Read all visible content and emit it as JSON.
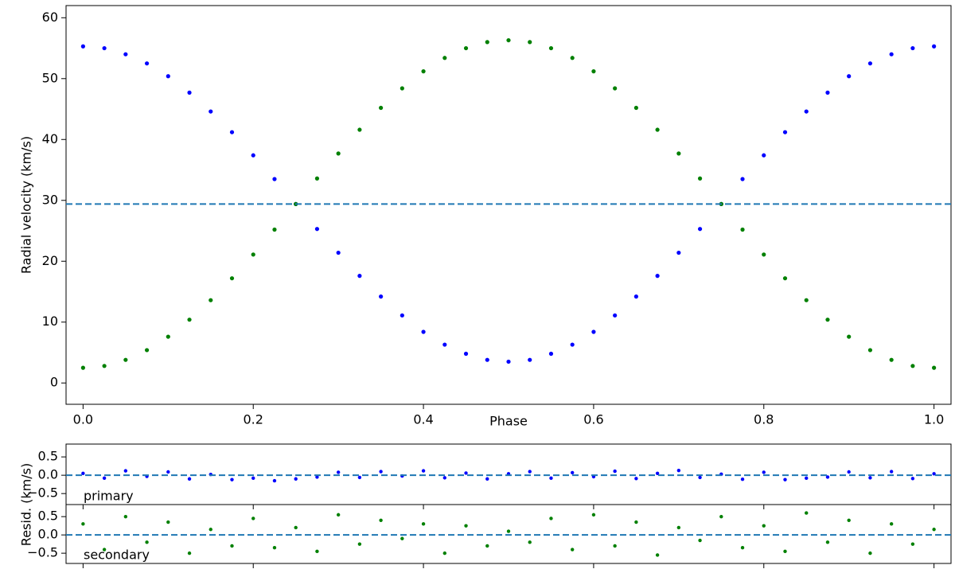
{
  "chart_data": [
    {
      "type": "scatter",
      "xlabel": "Phase",
      "ylabel": "Radial velocity (km/s)",
      "xlim": [
        -0.02,
        1.02
      ],
      "ylim": [
        -3.5,
        62
      ],
      "xticks": [
        {
          "value": 0,
          "label": "0.0"
        },
        0.2,
        0.4,
        0.6,
        0.8,
        {
          "value": 1,
          "label": "1.0"
        }
      ],
      "yticks": [
        0,
        10,
        20,
        30,
        40,
        50,
        60
      ],
      "hline": 29.4,
      "hline_color": "#1f77b4",
      "series": [
        {
          "color": "#0000ff",
          "x": [
            0,
            0.025,
            0.05,
            0.075,
            0.1,
            0.125,
            0.15,
            0.175,
            0.2,
            0.225,
            0.25,
            0.275,
            0.3,
            0.325,
            0.35,
            0.375,
            0.4,
            0.425,
            0.45,
            0.475,
            0.5,
            0.525,
            0.55,
            0.575,
            0.6,
            0.625,
            0.65,
            0.675,
            0.7,
            0.725,
            0.75,
            0.775,
            0.8,
            0.825,
            0.85,
            0.875,
            0.9,
            0.925,
            0.95,
            0.975,
            1
          ],
          "values": [
            55.3,
            55.0,
            54.0,
            52.5,
            50.4,
            47.7,
            44.6,
            41.2,
            37.4,
            33.5,
            29.4,
            25.3,
            21.4,
            17.6,
            14.2,
            11.1,
            8.4,
            6.3,
            4.8,
            3.8,
            3.5,
            3.8,
            4.8,
            6.3,
            8.4,
            11.1,
            14.2,
            17.6,
            21.4,
            25.3,
            29.4,
            33.5,
            37.4,
            41.2,
            44.6,
            47.7,
            50.4,
            52.5,
            54.0,
            55.0,
            55.3
          ]
        },
        {
          "color": "#008000",
          "x": [
            0,
            0.025,
            0.05,
            0.075,
            0.1,
            0.125,
            0.15,
            0.175,
            0.2,
            0.225,
            0.25,
            0.275,
            0.3,
            0.325,
            0.35,
            0.375,
            0.4,
            0.425,
            0.45,
            0.475,
            0.5,
            0.525,
            0.55,
            0.575,
            0.6,
            0.625,
            0.65,
            0.675,
            0.7,
            0.725,
            0.75,
            0.775,
            0.8,
            0.825,
            0.85,
            0.875,
            0.9,
            0.925,
            0.95,
            0.975,
            1
          ],
          "values": [
            2.5,
            2.8,
            3.8,
            5.4,
            7.6,
            10.4,
            13.6,
            17.2,
            21.1,
            25.2,
            29.4,
            33.6,
            37.7,
            41.6,
            45.2,
            48.4,
            51.2,
            53.4,
            55.0,
            56.0,
            56.3,
            56.0,
            55.0,
            53.4,
            51.2,
            48.4,
            45.2,
            41.6,
            37.7,
            33.6,
            29.4,
            25.2,
            21.1,
            17.2,
            13.6,
            10.4,
            7.6,
            5.4,
            3.8,
            2.8,
            2.5
          ]
        }
      ]
    },
    {
      "type": "scatter",
      "annotation": "primary",
      "ylabel": "Resid.  (km/s)",
      "xlim": [
        -0.02,
        1.02
      ],
      "ylim": [
        -0.8,
        0.85
      ],
      "xticks": [
        0,
        0.2,
        0.4,
        0.6,
        0.8,
        1
      ],
      "yticks": [
        {
          "value": -0.5,
          "label": "−0.5"
        },
        {
          "value": 0,
          "label": "0.0"
        },
        0.5
      ],
      "hline": 0,
      "hline_color": "#1f77b4",
      "series": [
        {
          "color": "#0000ff",
          "x": [
            0,
            0.025,
            0.05,
            0.075,
            0.1,
            0.125,
            0.15,
            0.175,
            0.2,
            0.225,
            0.25,
            0.275,
            0.3,
            0.325,
            0.35,
            0.375,
            0.4,
            0.425,
            0.45,
            0.475,
            0.5,
            0.525,
            0.55,
            0.575,
            0.6,
            0.625,
            0.65,
            0.675,
            0.7,
            0.725,
            0.75,
            0.775,
            0.8,
            0.825,
            0.85,
            0.875,
            0.9,
            0.925,
            0.95,
            0.975,
            1
          ],
          "values": [
            0.05,
            -0.08,
            0.12,
            -0.03,
            0.09,
            -0.1,
            0.02,
            -0.12,
            -0.08,
            -0.15,
            -0.1,
            -0.05,
            0.08,
            -0.06,
            0.1,
            -0.02,
            0.12,
            -0.07,
            0.06,
            -0.1,
            0.04,
            0.1,
            -0.08,
            0.07,
            -0.04,
            0.11,
            -0.09,
            0.05,
            0.13,
            -0.06,
            0.03,
            -0.11,
            0.08,
            -0.12,
            -0.08,
            -0.05,
            0.09,
            -0.07,
            0.1,
            -0.09,
            0.04
          ]
        }
      ]
    },
    {
      "type": "scatter",
      "annotation": "secondary",
      "xlim": [
        -0.02,
        1.02
      ],
      "ylim": [
        -0.78,
        0.83
      ],
      "xticks": [
        0,
        0.2,
        0.4,
        0.6,
        0.8,
        1
      ],
      "yticks": [
        {
          "value": -0.5,
          "label": "−0.5"
        },
        {
          "value": 0,
          "label": "0.0"
        },
        0.5
      ],
      "hline": 0,
      "hline_color": "#1f77b4",
      "series": [
        {
          "color": "#008000",
          "x": [
            0,
            0.025,
            0.05,
            0.075,
            0.1,
            0.125,
            0.15,
            0.175,
            0.2,
            0.225,
            0.25,
            0.275,
            0.3,
            0.325,
            0.35,
            0.375,
            0.4,
            0.425,
            0.45,
            0.475,
            0.5,
            0.525,
            0.55,
            0.575,
            0.6,
            0.625,
            0.65,
            0.675,
            0.7,
            0.725,
            0.75,
            0.775,
            0.8,
            0.825,
            0.85,
            0.875,
            0.9,
            0.925,
            0.95,
            0.975,
            1
          ],
          "values": [
            0.3,
            -0.4,
            0.5,
            -0.2,
            0.35,
            -0.5,
            0.15,
            -0.3,
            0.45,
            -0.35,
            0.2,
            -0.45,
            0.55,
            -0.25,
            0.4,
            -0.1,
            0.3,
            -0.5,
            0.25,
            -0.3,
            0.1,
            -0.2,
            0.45,
            -0.4,
            0.55,
            -0.3,
            0.35,
            -0.55,
            0.2,
            -0.15,
            0.5,
            -0.35,
            0.25,
            -0.45,
            0.6,
            -0.2,
            0.4,
            -0.5,
            0.3,
            -0.25,
            0.15
          ]
        }
      ]
    }
  ]
}
